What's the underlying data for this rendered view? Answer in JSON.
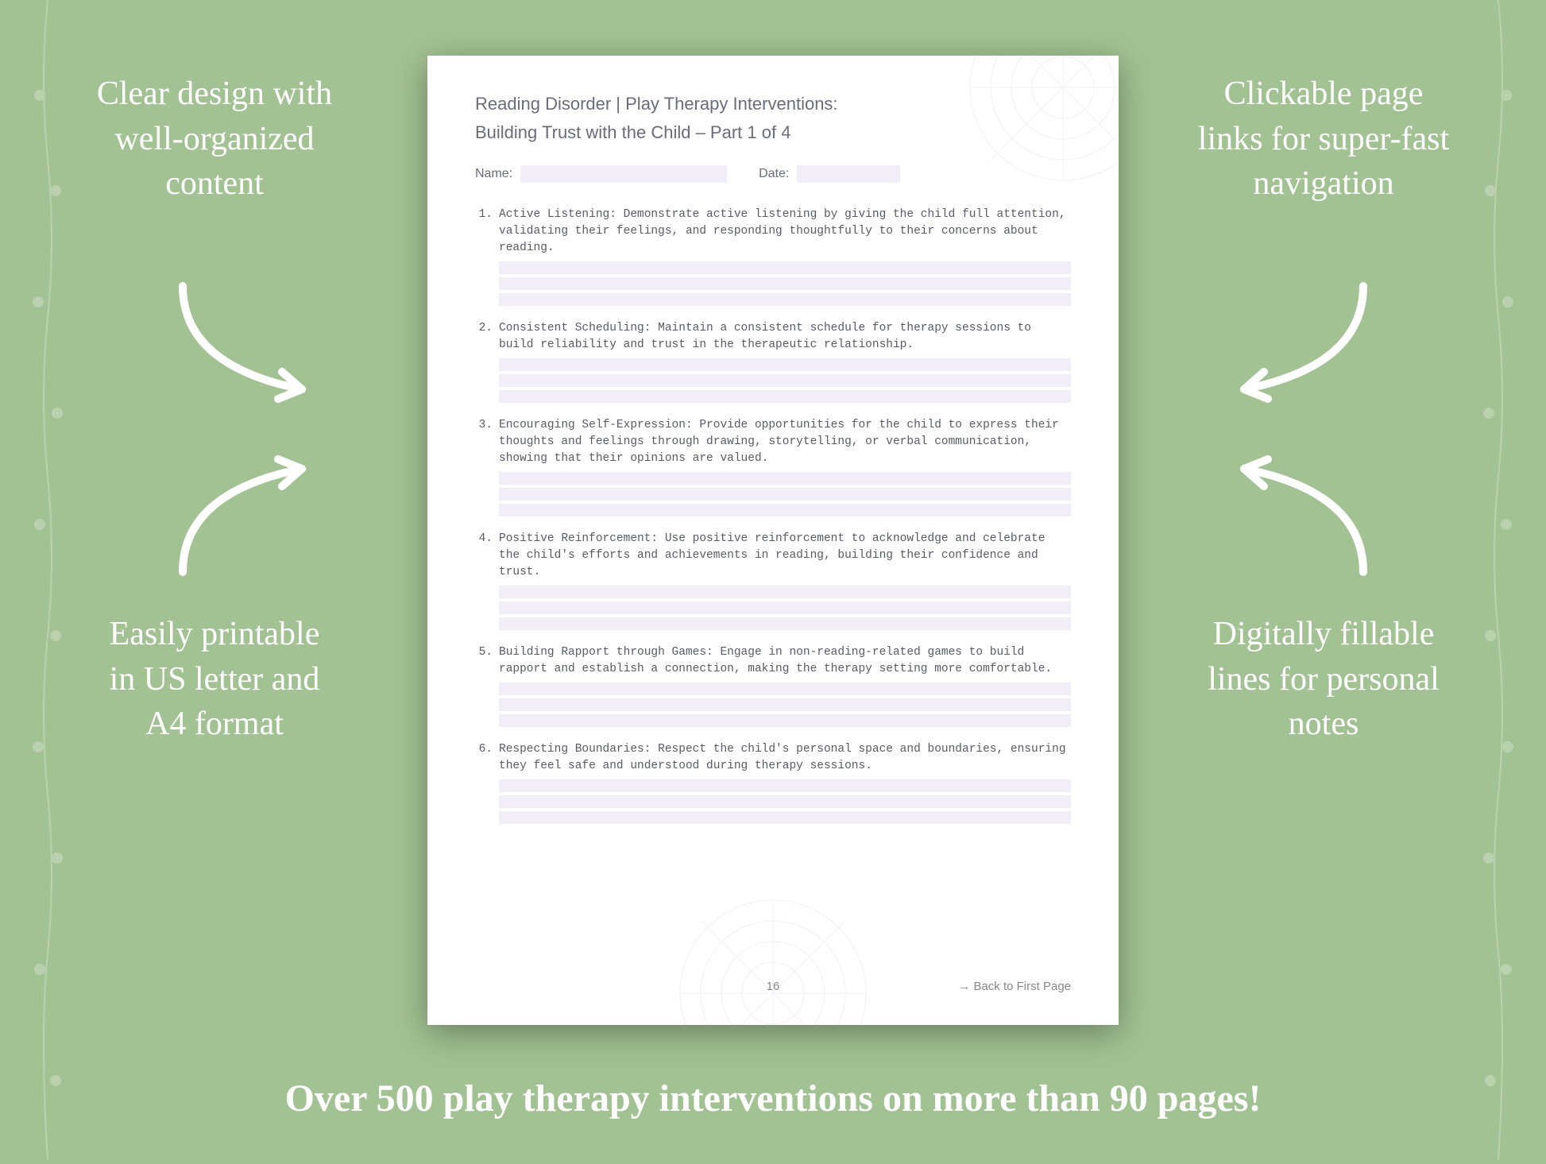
{
  "colors": {
    "background": "#a3c293",
    "callout_text": "#ffffff",
    "page_bg": "#ffffff",
    "fill_line": "#f2eef8",
    "doc_text": "#6b6b7a",
    "item_text": "#5a5a66",
    "shadow": "rgba(0,0,0,0.35)"
  },
  "typography": {
    "callout_fontsize": 42,
    "banner_fontsize": 48,
    "doc_title_fontsize": 22,
    "item_fontsize": 14.5,
    "item_font": "Courier New",
    "callout_font": "Georgia"
  },
  "callouts": {
    "top_left": "Clear design with well-organized content",
    "top_right": "Clickable page links for super-fast navigation",
    "bottom_left": "Easily printable in US letter and A4 format",
    "bottom_right": "Digitally fillable lines for personal notes"
  },
  "banner": "Over 500 play therapy interventions on more than 90 pages!",
  "document": {
    "title_line1": "Reading Disorder | Play Therapy Interventions:",
    "title_line2": "Building Trust with the Child – Part 1 of 4",
    "name_label": "Name:",
    "date_label": "Date:",
    "page_number": "16",
    "back_link": "→ Back to First Page",
    "fill_lines_per_item": 3,
    "items": [
      {
        "num": "1.",
        "text": "Active Listening: Demonstrate active listening by giving the child full attention, validating their feelings, and responding thoughtfully to their concerns about reading."
      },
      {
        "num": "2.",
        "text": "Consistent Scheduling: Maintain a consistent schedule for therapy sessions to build reliability and trust in the therapeutic relationship."
      },
      {
        "num": "3.",
        "text": "Encouraging Self-Expression: Provide opportunities for the child to express their thoughts and feelings through drawing, storytelling, or verbal communication, showing that their opinions are valued."
      },
      {
        "num": "4.",
        "text": "Positive Reinforcement: Use positive reinforcement to acknowledge and celebrate the child's efforts and achievements in reading, building their confidence and trust."
      },
      {
        "num": "5.",
        "text": "Building Rapport through Games: Engage in non-reading-related games to build rapport and establish a connection, making the therapy setting more comfortable."
      },
      {
        "num": "6.",
        "text": "Respecting Boundaries: Respect the child's personal space and boundaries, ensuring they feel safe and understood during therapy sessions."
      }
    ]
  }
}
